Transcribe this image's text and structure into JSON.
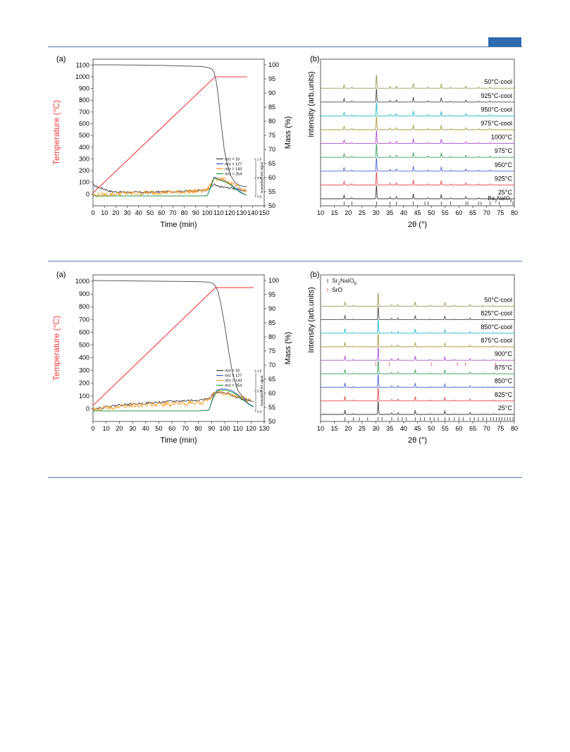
{
  "page": {
    "accent_color": "#2e6aad",
    "rule_color": "#4a7cb3"
  },
  "figures": [
    {
      "panel_a_label": "(a)",
      "panel_b_label": "(b)",
      "tga": {
        "xlabel": "Time (min)",
        "ylabel_left": "Temperature (°C)",
        "ylabel_right": "Mass (%)",
        "ms_axis_label": "Normalised MS signal",
        "xticks": [
          "0",
          "10",
          "20",
          "30",
          "40",
          "50",
          "60",
          "70",
          "80",
          "90",
          "100",
          "110",
          "120",
          "130",
          "140",
          "150"
        ],
        "yticks_left": [
          "0",
          "100",
          "200",
          "300",
          "400",
          "500",
          "600",
          "700",
          "800",
          "900",
          "1000",
          "1100"
        ],
        "yticks_right": [
          "50",
          "55",
          "60",
          "65",
          "70",
          "75",
          "80",
          "85",
          "90",
          "95",
          "100"
        ],
        "ms_ticks": [
          "0.0",
          "0.5",
          "1.0"
        ],
        "legend": [
          "m/z = 16",
          "m/z = 127",
          "m/z = 143",
          "m/z = 254"
        ]
      },
      "xrd": {
        "xlabel": "2θ (°)",
        "ylabel": "Intensity (arb.units)",
        "xticks": [
          "10",
          "15",
          "20",
          "25",
          "30",
          "35",
          "40",
          "45",
          "50",
          "55",
          "60",
          "65",
          "70",
          "75",
          "80"
        ],
        "traces": [
          "50°C-cool",
          "925°C-cool",
          "950°C-cool",
          "975°C-cool",
          "1000°C",
          "975°C",
          "950°C",
          "925°C",
          "25°C"
        ],
        "reference": "Ba2NaIO6"
      }
    },
    {
      "panel_a_label": "(a)",
      "panel_b_label": "(b)",
      "tga": {
        "xlabel": "Time (min)",
        "ylabel_left": "Temperature (°C)",
        "ylabel_right": "Mass (%)",
        "ms_axis_label": "Normalised MS signal",
        "xticks": [
          "0",
          "10",
          "20",
          "30",
          "40",
          "50",
          "60",
          "70",
          "80",
          "90",
          "100",
          "110",
          "120",
          "130"
        ],
        "yticks_left": [
          "0",
          "100",
          "200",
          "300",
          "400",
          "500",
          "600",
          "700",
          "800",
          "900",
          "1000"
        ],
        "yticks_right": [
          "50",
          "55",
          "60",
          "65",
          "70",
          "75",
          "80",
          "85",
          "90",
          "95",
          "100"
        ],
        "ms_ticks": [
          "0.0",
          "0.5",
          "1.0"
        ],
        "legend": [
          "m/z = 16",
          "m/z = 127",
          "m/z = 143",
          "m/z = 254"
        ]
      },
      "xrd": {
        "xlabel": "2θ (°)",
        "ylabel": "Intensity (arb.units)",
        "xticks": [
          "10",
          "15",
          "20",
          "25",
          "30",
          "35",
          "40",
          "45",
          "50",
          "55",
          "60",
          "65",
          "70",
          "75",
          "80"
        ],
        "traces": [
          "50°C-cool",
          "825°C-cool",
          "850°C-cool",
          "875°C-cool",
          "900°C",
          "875°C",
          "850°C",
          "825°C",
          "25°C"
        ],
        "legend": [
          "Sr2NaIO6",
          "SrO"
        ]
      }
    }
  ],
  "chart_data": [
    {
      "type": "line",
      "title": "",
      "xlabel": "Time (min)",
      "ylabel": "Temperature (°C)",
      "y2label": "Mass (%)",
      "xlim": [
        0,
        150
      ],
      "ylim": [
        -100,
        1150
      ],
      "y2lim": [
        50,
        102
      ],
      "series": [
        {
          "name": "Temperature",
          "axis": "left",
          "color": "#f03c3c",
          "x": [
            0,
            107,
            108,
            135
          ],
          "y": [
            10,
            1000,
            1000,
            1000
          ]
        },
        {
          "name": "Mass",
          "axis": "right",
          "color": "#5a5a5a",
          "x": [
            0,
            20,
            40,
            60,
            80,
            95,
            100,
            104,
            106,
            108,
            110,
            112,
            115,
            118,
            121,
            124,
            127,
            130,
            132,
            135
          ],
          "y": [
            100,
            100,
            99.9,
            99.8,
            99.6,
            99.4,
            99.1,
            98.6,
            97.5,
            94,
            88,
            80,
            70,
            64,
            60.5,
            58.5,
            57.5,
            57,
            56.9,
            56.8
          ]
        }
      ],
      "ms_signals": [
        {
          "name": "m/z = 16",
          "color": "#3a3a3a",
          "x": [
            0,
            2,
            5,
            10,
            15,
            20,
            30,
            40,
            50,
            60,
            70,
            80,
            90,
            100,
            103,
            106,
            108,
            110,
            114,
            118,
            122,
            126,
            130,
            135
          ],
          "y": [
            0.58,
            0.5,
            0.45,
            0.35,
            0.25,
            0.22,
            0.2,
            0.2,
            0.2,
            0.22,
            0.24,
            0.25,
            0.28,
            0.3,
            0.4,
            0.6,
            0.5,
            0.48,
            0.45,
            0.42,
            0.4,
            0.35,
            0.3,
            0.25
          ]
        },
        {
          "name": "m/z = 127",
          "color": "#3b4fcf",
          "x": [
            0,
            20,
            40,
            60,
            80,
            100,
            104,
            106,
            108,
            112,
            116,
            120,
            125,
            130,
            135
          ],
          "y": [
            0.02,
            0.02,
            0.02,
            0.02,
            0.02,
            0.03,
            0.6,
            0.95,
            0.9,
            0.82,
            0.75,
            0.62,
            0.4,
            0.18,
            0.05
          ]
        },
        {
          "name": "m/z = 143",
          "color": "#ff9a1f",
          "x": [
            0,
            10,
            20,
            30,
            40,
            50,
            60,
            70,
            80,
            90,
            100,
            104,
            106,
            110,
            115,
            120,
            125,
            130,
            135
          ],
          "y": [
            0.05,
            0.08,
            0.12,
            0.15,
            0.15,
            0.18,
            0.2,
            0.2,
            0.22,
            0.25,
            0.3,
            0.7,
            0.9,
            0.85,
            0.8,
            0.65,
            0.5,
            0.35,
            0.28
          ]
        },
        {
          "name": "m/z = 254",
          "color": "#1e9e3a",
          "x": [
            0,
            20,
            40,
            60,
            80,
            100,
            104,
            106,
            108,
            112,
            116,
            120,
            125,
            130,
            135
          ],
          "y": [
            0.02,
            0.02,
            0.02,
            0.02,
            0.02,
            0.03,
            0.55,
            0.9,
            0.85,
            0.78,
            0.7,
            0.58,
            0.35,
            0.15,
            0.05
          ]
        }
      ]
    },
    {
      "type": "line",
      "title": "",
      "xlabel": "2θ (°)",
      "ylabel": "Intensity (arb.units)",
      "xlim": [
        10,
        80
      ],
      "peaks_2theta": [
        18.5,
        21.3,
        30.2,
        35.1,
        37.4,
        43.5,
        48.8,
        53.6,
        57.0,
        62.5,
        67.1,
        71.2
      ],
      "peak_heights": [
        0.25,
        0.08,
        1.0,
        0.12,
        0.15,
        0.35,
        0.08,
        0.3,
        0.07,
        0.15,
        0.07,
        0.08
      ],
      "series": [
        {
          "name": "50°C-cool",
          "color": "#9a9a52"
        },
        {
          "name": "925°C-cool",
          "color": "#4a4a4a"
        },
        {
          "name": "950°C-cool",
          "color": "#1fb8c9"
        },
        {
          "name": "975°C-cool",
          "color": "#a89a3c"
        },
        {
          "name": "1000°C",
          "color": "#b04fd1"
        },
        {
          "name": "975°C",
          "color": "#3a9e5a"
        },
        {
          "name": "950°C",
          "color": "#4a66d6"
        },
        {
          "name": "925°C",
          "color": "#e04848"
        },
        {
          "name": "25°C",
          "color": "#3a3a3a"
        }
      ],
      "reference_ticks": [
        18.5,
        21.3,
        30.2,
        35.1,
        37.4,
        43.5,
        47.7,
        48.8,
        53.6,
        57.0,
        62.5,
        63.2,
        67.1,
        68.0,
        71.2,
        74.5,
        79.5
      ]
    },
    {
      "type": "line",
      "title": "",
      "xlabel": "Time (min)",
      "ylabel": "Temperature (°C)",
      "y2label": "Mass (%)",
      "xlim": [
        0,
        130
      ],
      "ylim": [
        -100,
        1050
      ],
      "y2lim": [
        50,
        102
      ],
      "series": [
        {
          "name": "Temperature",
          "axis": "left",
          "color": "#f03c3c",
          "x": [
            0,
            93,
            94,
            122
          ],
          "y": [
            25,
            950,
            950,
            950
          ]
        },
        {
          "name": "Mass",
          "axis": "right",
          "color": "#5a5a5a",
          "x": [
            0,
            20,
            40,
            60,
            80,
            88,
            91,
            93,
            95,
            97,
            100,
            103,
            106,
            110,
            114,
            118,
            122
          ],
          "y": [
            100,
            99.9,
            99.8,
            99.7,
            99.6,
            99.4,
            99,
            98,
            96,
            92,
            84,
            75,
            67,
            61,
            58.5,
            57.5,
            57
          ]
        }
      ],
      "ms_signals": [
        {
          "name": "m/z = 16",
          "color": "#3a3a3a",
          "x": [
            0,
            10,
            20,
            30,
            40,
            50,
            60,
            70,
            80,
            88,
            92,
            96,
            100,
            105,
            110,
            115,
            120
          ],
          "y": [
            0.1,
            0.2,
            0.28,
            0.32,
            0.36,
            0.4,
            0.44,
            0.47,
            0.5,
            0.55,
            0.8,
            0.82,
            0.8,
            0.75,
            0.6,
            0.52,
            0.5
          ]
        },
        {
          "name": "m/z = 127",
          "color": "#3b4fcf",
          "x": [
            0,
            20,
            40,
            60,
            80,
            88,
            91,
            94,
            98,
            102,
            106,
            110,
            114,
            118,
            122
          ],
          "y": [
            0.02,
            0.02,
            0.02,
            0.02,
            0.02,
            0.05,
            0.6,
            0.95,
            1.0,
            0.98,
            0.9,
            0.75,
            0.55,
            0.35,
            0.2
          ]
        },
        {
          "name": "m/z = 143",
          "color": "#ff9a1f",
          "x": [
            0,
            10,
            20,
            30,
            40,
            50,
            60,
            70,
            80,
            88,
            92,
            96,
            100,
            105,
            110,
            115,
            120
          ],
          "y": [
            0.05,
            0.15,
            0.2,
            0.25,
            0.3,
            0.3,
            0.32,
            0.35,
            0.38,
            0.45,
            0.8,
            0.85,
            0.8,
            0.75,
            0.65,
            0.55,
            0.45
          ]
        },
        {
          "name": "m/z = 254",
          "color": "#1e9e3a",
          "x": [
            0,
            20,
            40,
            60,
            80,
            88,
            91,
            94,
            98,
            102,
            106,
            110,
            114,
            118,
            122
          ],
          "y": [
            0.02,
            0.02,
            0.02,
            0.02,
            0.02,
            0.04,
            0.55,
            0.9,
            0.95,
            0.92,
            0.85,
            0.7,
            0.5,
            0.32,
            0.18
          ]
        }
      ]
    },
    {
      "type": "line",
      "title": "",
      "xlabel": "2θ (°)",
      "ylabel": "Intensity (arb.units)",
      "xlim": [
        10,
        80
      ],
      "peaks_2theta": [
        18.8,
        21.8,
        30.8,
        35.7,
        38.0,
        44.2,
        49.6,
        54.9,
        58.3,
        64.0,
        68.7,
        72.5
      ],
      "peak_heights": [
        0.3,
        0.06,
        1.0,
        0.1,
        0.12,
        0.3,
        0.06,
        0.25,
        0.06,
        0.12,
        0.05,
        0.06
      ],
      "series": [
        {
          "name": "50°C-cool",
          "color": "#9a9a52"
        },
        {
          "name": "825°C-cool",
          "color": "#4a4a4a"
        },
        {
          "name": "850°C-cool",
          "color": "#1fb8c9"
        },
        {
          "name": "875°C-cool",
          "color": "#a89a3c"
        },
        {
          "name": "900°C",
          "color": "#b04fd1"
        },
        {
          "name": "875°C",
          "color": "#3a9e5a"
        },
        {
          "name": "850°C",
          "color": "#4a66d6"
        },
        {
          "name": "825°C",
          "color": "#e04848"
        },
        {
          "name": "25°C",
          "color": "#3a3a3a"
        }
      ],
      "sro_ticks": [
        30.0,
        34.8,
        50.0,
        59.4,
        62.3,
        73.3
      ],
      "reference_ticks": [
        18.8,
        21.8,
        24.0,
        27.0,
        30.8,
        32.2,
        35.7,
        38.0,
        39.5,
        41.0,
        44.2,
        46.0,
        47.5,
        49.6,
        51.0,
        52.5,
        54.9,
        56.5,
        58.3,
        60.0,
        61.5,
        64.0,
        65.5,
        67.0,
        68.7,
        70.0,
        71.5,
        72.5,
        73.5,
        74.5,
        75.5,
        76.5,
        77.5,
        78.5,
        79.5
      ]
    }
  ]
}
